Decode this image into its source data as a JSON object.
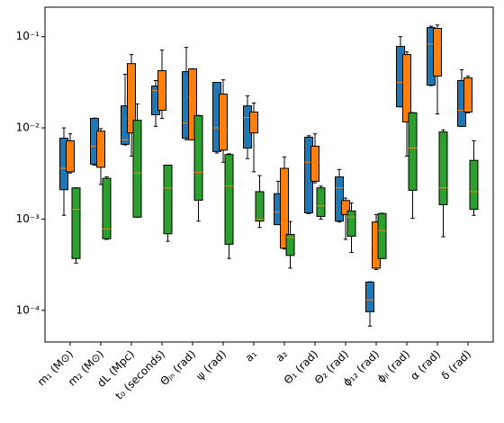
{
  "chart_data": {
    "type": "box",
    "categories": [
      "m₁ (M⊙)",
      "m₂ (M⊙)",
      "dL (Mpc)",
      "t₀ (seconds)",
      "Θⱼₙ (rad)",
      "ψ (rad)",
      "a₁",
      "a₂",
      "Θ₁ (rad)",
      "Θ₂ (rad)",
      "ϕ₁₂ (rad)",
      "ϕⱼₗ (rad)",
      "α (rad)",
      "δ (rad)"
    ],
    "log_scale": true,
    "ylim": [
      4.5e-05,
      0.21
    ],
    "yticks": [
      {
        "value": 0.0001,
        "label": "10⁻⁴"
      },
      {
        "value": 0.001,
        "label": "10⁻³"
      },
      {
        "value": 0.01,
        "label": "10⁻²"
      },
      {
        "value": 0.1,
        "label": "10⁻¹"
      }
    ],
    "median_color": "#ff7f0e",
    "series": [
      {
        "color": "#1f77b4",
        "whislo": [
          0.0011,
          0.0039,
          0.0065,
          0.0104,
          0.0074,
          0.0053,
          0.0046,
          0.00087,
          0.00115,
          0.00093,
          6.73e-05,
          0.017,
          0.029,
          0.0104
        ],
        "q1": [
          0.0021,
          0.004,
          0.0066,
          0.0139,
          0.0077,
          0.0055,
          0.006,
          0.00087,
          0.00117,
          0.00095,
          9.66e-05,
          0.017,
          0.0294,
          0.0104
        ],
        "med": [
          0.0036,
          0.0063,
          0.0074,
          0.0256,
          0.0113,
          0.01,
          0.013,
          0.0012,
          0.0042,
          0.0022,
          0.00013,
          0.0315,
          0.083,
          0.0156
        ],
        "q3": [
          0.0077,
          0.0127,
          0.0174,
          0.0287,
          0.0413,
          0.0315,
          0.0174,
          0.0019,
          0.0079,
          0.0029,
          0.000204,
          0.078,
          0.1256,
          0.033
        ],
        "whishi": [
          0.01,
          0.0128,
          0.0386,
          0.033,
          0.0762,
          0.0315,
          0.0224,
          0.0026,
          0.0082,
          0.0035,
          0.000206,
          0.1,
          0.13,
          0.0433
        ]
      },
      {
        "color": "#ff7f0e",
        "whislo": [
          0.0032,
          0.0024,
          0.0049,
          0.0127,
          0.0074,
          0.0042,
          0.0033,
          0.00047,
          0.0025,
          0.0006,
          0.00028,
          0.0049,
          0.0142,
          0.0146
        ],
        "q1": [
          0.0033,
          0.0037,
          0.0088,
          0.0156,
          0.0074,
          0.0057,
          0.0088,
          0.00048,
          0.0026,
          0.00112,
          0.00029,
          0.0116,
          0.0369,
          0.0149
        ],
        "med": [
          0.0036,
          0.0063,
          0.0127,
          0.0245,
          0.0219,
          0.0097,
          0.013,
          0.00091,
          0.0042,
          0.0014,
          0.00054,
          0.0315,
          0.0815,
          0.0156
        ],
        "q3": [
          0.0072,
          0.0092,
          0.0506,
          0.0423,
          0.0442,
          0.0234,
          0.0149,
          0.0036,
          0.0063,
          0.0016,
          0.00093,
          0.0636,
          0.123,
          0.0352
        ],
        "whishi": [
          0.0086,
          0.0098,
          0.0636,
          0.0711,
          0.0445,
          0.0336,
          0.0187,
          0.0048,
          0.0086,
          0.0017,
          0.00112,
          0.068,
          0.134,
          0.0368
        ]
      },
      {
        "color": "#2ca02c",
        "whislo": [
          0.00033,
          0.0006,
          0.00105,
          0.00057,
          0.00095,
          0.00037,
          0.00081,
          0.00029,
          0.001,
          0.00043,
          0.00037,
          0.00102,
          0.00064,
          0.0011
        ],
        "q1": [
          0.00037,
          0.00061,
          0.00105,
          0.00069,
          0.00161,
          0.00053,
          0.00095,
          0.0004,
          0.00107,
          0.00065,
          0.00037,
          0.00207,
          0.00144,
          0.00128
        ],
        "med": [
          0.00128,
          0.00078,
          0.0032,
          0.0022,
          0.00325,
          0.0023,
          0.00099,
          0.00063,
          0.0014,
          0.00105,
          0.00075,
          0.006,
          0.0022,
          0.002
        ],
        "q3": [
          0.0022,
          0.0028,
          0.0121,
          0.0039,
          0.0136,
          0.0051,
          0.002,
          0.00068,
          0.0022,
          0.00123,
          0.00115,
          0.0146,
          0.009,
          0.0044
        ],
        "whishi": [
          0.0022,
          0.0029,
          0.0183,
          0.0039,
          0.0137,
          0.0052,
          0.003,
          0.00094,
          0.0023,
          0.0015,
          0.00116,
          0.0147,
          0.0095,
          0.0072
        ]
      }
    ]
  }
}
